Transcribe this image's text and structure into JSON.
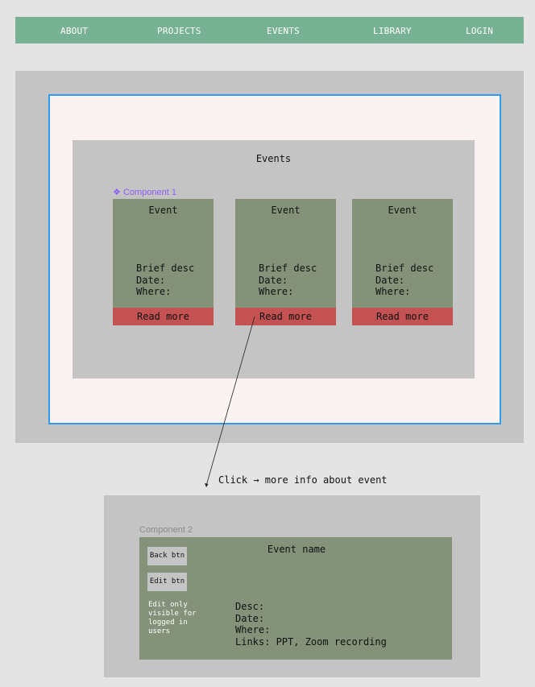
{
  "nav": {
    "items": [
      {
        "label": "ABOUT"
      },
      {
        "label": "PROJECTS"
      },
      {
        "label": "EVENTS"
      },
      {
        "label": "LIBRARY"
      },
      {
        "label": "LOGIN"
      }
    ],
    "color": "#78b295"
  },
  "events_section": {
    "title": "Events",
    "component_label": "Component 1",
    "component_icon": "component-diamond-icon",
    "cards": [
      {
        "title": "Event",
        "desc": "Brief desc",
        "date": "Date:",
        "where": "Where:",
        "button": "Read more"
      },
      {
        "title": "Event",
        "desc": "Brief desc",
        "date": "Date:",
        "where": "Where:",
        "button": "Read more"
      },
      {
        "title": "Event",
        "desc": "Brief desc",
        "date": "Date:",
        "where": "Where:",
        "button": "Read more"
      }
    ]
  },
  "annotation": {
    "text": "Click → more info about event"
  },
  "detail": {
    "component_label": "Component 2",
    "title": "Event name",
    "back_button": "Back btn",
    "edit_button": "Edit btn",
    "edit_note": "Edit only visible for logged in users",
    "desc": "Desc:",
    "date": "Date:",
    "where": "Where:",
    "links": "Links: PPT, Zoom recording"
  },
  "colors": {
    "selection": "#2f9bf0",
    "card": "#849279",
    "button": "#c45252",
    "component": "#8a5cf6"
  }
}
